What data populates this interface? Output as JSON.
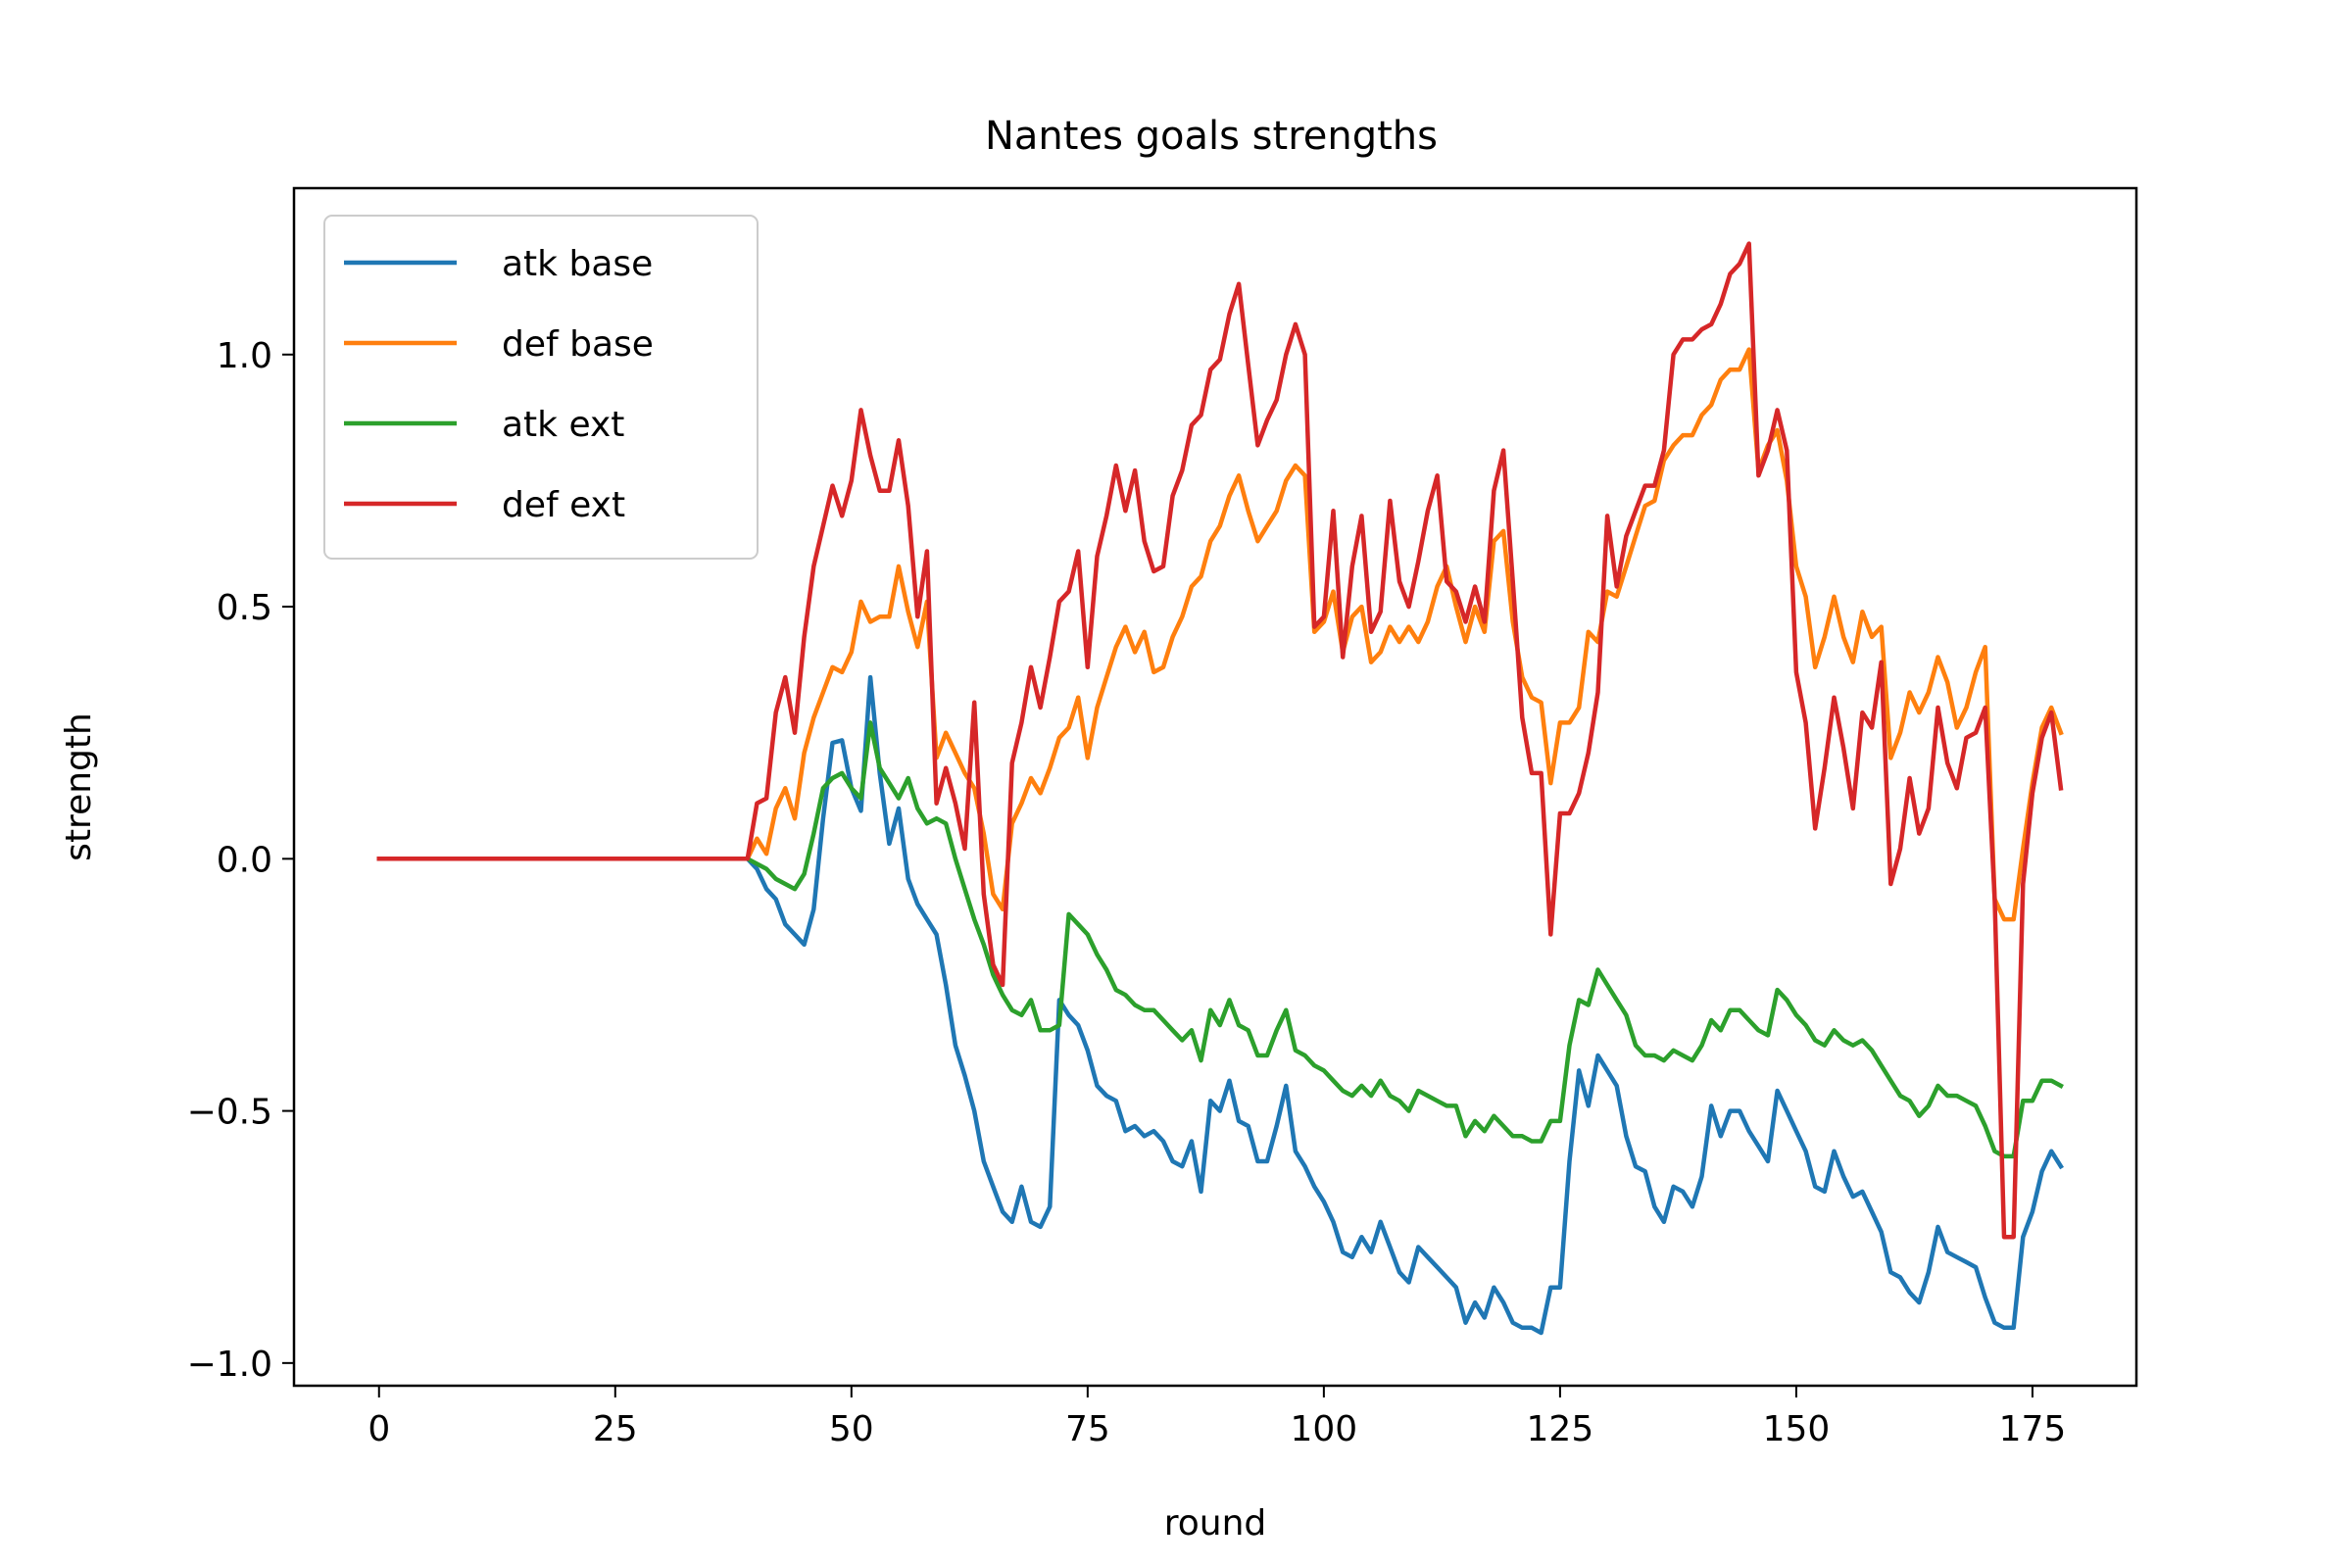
{
  "chart_data": {
    "type": "line",
    "title": "Nantes goals strengths",
    "xlabel": "round",
    "ylabel": "strength",
    "xlim": [
      -9,
      186
    ],
    "ylim": [
      -1.045,
      1.33
    ],
    "xticks": [
      0,
      25,
      50,
      75,
      100,
      125,
      150,
      175
    ],
    "xtick_labels": [
      "0",
      "25",
      "50",
      "75",
      "100",
      "125",
      "150",
      "175"
    ],
    "yticks": [
      -1.0,
      -0.5,
      0.0,
      0.5,
      1.0
    ],
    "ytick_labels": [
      "−1.0",
      "−0.5",
      "0.0",
      "0.5",
      "1.0"
    ],
    "grid": false,
    "legend_position": "upper-left",
    "x_start": 0,
    "series": [
      {
        "name": "atk base",
        "color": "#1f77b4",
        "values": [
          0,
          0,
          0,
          0,
          0,
          0,
          0,
          0,
          0,
          0,
          0,
          0,
          0,
          0,
          0,
          0,
          0,
          0,
          0,
          0,
          0,
          0,
          0,
          0,
          0,
          0,
          0,
          0,
          0,
          0,
          0,
          0,
          0,
          0,
          0,
          0,
          0,
          0,
          0,
          0,
          -0.02,
          -0.06,
          -0.08,
          -0.13,
          -0.15,
          -0.17,
          -0.1,
          0.08,
          0.23,
          0.235,
          0.14,
          0.095,
          0.36,
          0.17,
          0.03,
          0.1,
          -0.04,
          -0.09,
          -0.12,
          -0.15,
          -0.25,
          -0.37,
          -0.43,
          -0.5,
          -0.6,
          -0.65,
          -0.7,
          -0.72,
          -0.65,
          -0.72,
          -0.73,
          -0.69,
          -0.28,
          -0.31,
          -0.33,
          -0.38,
          -0.45,
          -0.47,
          -0.48,
          -0.54,
          -0.53,
          -0.55,
          -0.54,
          -0.56,
          -0.6,
          -0.61,
          -0.56,
          -0.66,
          -0.48,
          -0.5,
          -0.44,
          -0.52,
          -0.53,
          -0.6,
          -0.6,
          -0.53,
          -0.45,
          -0.58,
          -0.61,
          -0.65,
          -0.68,
          -0.72,
          -0.78,
          -0.79,
          -0.75,
          -0.78,
          -0.72,
          -0.77,
          -0.82,
          -0.84,
          -0.77,
          -0.79,
          -0.81,
          -0.83,
          -0.85,
          -0.92,
          -0.88,
          -0.91,
          -0.85,
          -0.88,
          -0.92,
          -0.93,
          -0.93,
          -0.94,
          -0.85,
          -0.85,
          -0.6,
          -0.42,
          -0.49,
          -0.39,
          -0.42,
          -0.45,
          -0.55,
          -0.61,
          -0.62,
          -0.69,
          -0.72,
          -0.65,
          -0.66,
          -0.69,
          -0.63,
          -0.49,
          -0.55,
          -0.5,
          -0.5,
          -0.54,
          -0.57,
          -0.6,
          -0.46,
          -0.5,
          -0.54,
          -0.58,
          -0.65,
          -0.66,
          -0.58,
          -0.63,
          -0.67,
          -0.66,
          -0.7,
          -0.74,
          -0.82,
          -0.83,
          -0.86,
          -0.88,
          -0.82,
          -0.73,
          -0.78,
          -0.79,
          -0.8,
          -0.81,
          -0.87,
          -0.92,
          -0.93,
          -0.93,
          -0.75,
          -0.7,
          -0.62,
          -0.58,
          -0.61
        ]
      },
      {
        "name": "def base",
        "color": "#ff7f0e",
        "values": [
          0,
          0,
          0,
          0,
          0,
          0,
          0,
          0,
          0,
          0,
          0,
          0,
          0,
          0,
          0,
          0,
          0,
          0,
          0,
          0,
          0,
          0,
          0,
          0,
          0,
          0,
          0,
          0,
          0,
          0,
          0,
          0,
          0,
          0,
          0,
          0,
          0,
          0,
          0,
          0,
          0.04,
          0.01,
          0.1,
          0.14,
          0.08,
          0.21,
          0.28,
          0.33,
          0.38,
          0.37,
          0.41,
          0.51,
          0.47,
          0.48,
          0.48,
          0.58,
          0.49,
          0.42,
          0.51,
          0.2,
          0.25,
          0.21,
          0.17,
          0.14,
          0.05,
          -0.07,
          -0.1,
          0.07,
          0.11,
          0.16,
          0.13,
          0.18,
          0.24,
          0.26,
          0.32,
          0.2,
          0.3,
          0.36,
          0.42,
          0.46,
          0.41,
          0.45,
          0.37,
          0.38,
          0.44,
          0.48,
          0.54,
          0.56,
          0.63,
          0.66,
          0.72,
          0.76,
          0.69,
          0.63,
          0.66,
          0.69,
          0.75,
          0.78,
          0.76,
          0.45,
          0.47,
          0.53,
          0.41,
          0.48,
          0.5,
          0.39,
          0.41,
          0.46,
          0.43,
          0.46,
          0.43,
          0.47,
          0.54,
          0.58,
          0.5,
          0.43,
          0.5,
          0.45,
          0.63,
          0.65,
          0.47,
          0.36,
          0.32,
          0.31,
          0.15,
          0.27,
          0.27,
          0.3,
          0.45,
          0.43,
          0.53,
          0.52,
          0.58,
          0.64,
          0.7,
          0.71,
          0.79,
          0.82,
          0.84,
          0.84,
          0.88,
          0.9,
          0.95,
          0.97,
          0.97,
          1.01,
          0.77,
          0.82,
          0.85,
          0.75,
          0.58,
          0.52,
          0.38,
          0.44,
          0.52,
          0.44,
          0.39,
          0.49,
          0.44,
          0.46,
          0.2,
          0.25,
          0.33,
          0.29,
          0.33,
          0.4,
          0.35,
          0.26,
          0.3,
          0.37,
          0.42,
          -0.08,
          -0.12,
          -0.12,
          0.02,
          0.15,
          0.26,
          0.3,
          0.25
        ]
      },
      {
        "name": "atk ext",
        "color": "#2ca02c",
        "values": [
          0,
          0,
          0,
          0,
          0,
          0,
          0,
          0,
          0,
          0,
          0,
          0,
          0,
          0,
          0,
          0,
          0,
          0,
          0,
          0,
          0,
          0,
          0,
          0,
          0,
          0,
          0,
          0,
          0,
          0,
          0,
          0,
          0,
          0,
          0,
          0,
          0,
          0,
          0,
          0,
          -0.01,
          -0.02,
          -0.04,
          -0.05,
          -0.06,
          -0.03,
          0.05,
          0.14,
          0.16,
          0.17,
          0.14,
          0.12,
          0.27,
          0.18,
          0.15,
          0.12,
          0.16,
          0.1,
          0.07,
          0.08,
          0.07,
          0,
          -0.06,
          -0.12,
          -0.17,
          -0.23,
          -0.27,
          -0.3,
          -0.31,
          -0.28,
          -0.34,
          -0.34,
          -0.33,
          -0.11,
          -0.13,
          -0.15,
          -0.19,
          -0.22,
          -0.26,
          -0.27,
          -0.29,
          -0.3,
          -0.3,
          -0.32,
          -0.34,
          -0.36,
          -0.34,
          -0.4,
          -0.3,
          -0.33,
          -0.28,
          -0.33,
          -0.34,
          -0.39,
          -0.39,
          -0.34,
          -0.3,
          -0.38,
          -0.39,
          -0.41,
          -0.42,
          -0.44,
          -0.46,
          -0.47,
          -0.45,
          -0.47,
          -0.44,
          -0.47,
          -0.48,
          -0.5,
          -0.46,
          -0.47,
          -0.48,
          -0.49,
          -0.49,
          -0.55,
          -0.52,
          -0.54,
          -0.51,
          -0.53,
          -0.55,
          -0.55,
          -0.56,
          -0.56,
          -0.52,
          -0.52,
          -0.37,
          -0.28,
          -0.29,
          -0.22,
          -0.25,
          -0.28,
          -0.31,
          -0.37,
          -0.39,
          -0.39,
          -0.4,
          -0.38,
          -0.39,
          -0.4,
          -0.37,
          -0.32,
          -0.34,
          -0.3,
          -0.3,
          -0.32,
          -0.34,
          -0.35,
          -0.26,
          -0.28,
          -0.31,
          -0.33,
          -0.36,
          -0.37,
          -0.34,
          -0.36,
          -0.37,
          -0.36,
          -0.38,
          -0.41,
          -0.44,
          -0.47,
          -0.48,
          -0.51,
          -0.49,
          -0.45,
          -0.47,
          -0.47,
          -0.48,
          -0.49,
          -0.53,
          -0.58,
          -0.59,
          -0.59,
          -0.48,
          -0.48,
          -0.44,
          -0.44,
          -0.45
        ]
      },
      {
        "name": "def ext",
        "color": "#d62728",
        "values": [
          0,
          0,
          0,
          0,
          0,
          0,
          0,
          0,
          0,
          0,
          0,
          0,
          0,
          0,
          0,
          0,
          0,
          0,
          0,
          0,
          0,
          0,
          0,
          0,
          0,
          0,
          0,
          0,
          0,
          0,
          0,
          0,
          0,
          0,
          0,
          0,
          0,
          0,
          0,
          0,
          0.11,
          0.12,
          0.29,
          0.36,
          0.25,
          0.44,
          0.58,
          0.66,
          0.74,
          0.68,
          0.75,
          0.89,
          0.8,
          0.73,
          0.73,
          0.83,
          0.7,
          0.48,
          0.61,
          0.11,
          0.18,
          0.11,
          0.02,
          0.31,
          -0.07,
          -0.21,
          -0.25,
          0.19,
          0.27,
          0.38,
          0.3,
          0.4,
          0.51,
          0.53,
          0.61,
          0.38,
          0.6,
          0.68,
          0.78,
          0.69,
          0.77,
          0.63,
          0.57,
          0.58,
          0.72,
          0.77,
          0.86,
          0.88,
          0.97,
          0.99,
          1.08,
          1.14,
          0.98,
          0.82,
          0.87,
          0.91,
          1.0,
          1.06,
          1.0,
          0.46,
          0.48,
          0.69,
          0.4,
          0.58,
          0.68,
          0.45,
          0.49,
          0.71,
          0.55,
          0.5,
          0.59,
          0.69,
          0.76,
          0.55,
          0.53,
          0.47,
          0.54,
          0.47,
          0.73,
          0.81,
          0.55,
          0.28,
          0.17,
          0.17,
          -0.15,
          0.09,
          0.09,
          0.13,
          0.21,
          0.33,
          0.68,
          0.54,
          0.64,
          0.69,
          0.74,
          0.74,
          0.81,
          1.0,
          1.03,
          1.03,
          1.05,
          1.06,
          1.1,
          1.16,
          1.18,
          1.22,
          0.76,
          0.81,
          0.89,
          0.81,
          0.37,
          0.27,
          0.06,
          0.18,
          0.32,
          0.22,
          0.1,
          0.29,
          0.26,
          0.39,
          -0.05,
          0.02,
          0.16,
          0.05,
          0.1,
          0.3,
          0.19,
          0.14,
          0.24,
          0.25,
          0.3,
          -0.08,
          -0.75,
          -0.75,
          -0.05,
          0.13,
          0.24,
          0.29,
          0.14
        ]
      }
    ]
  }
}
